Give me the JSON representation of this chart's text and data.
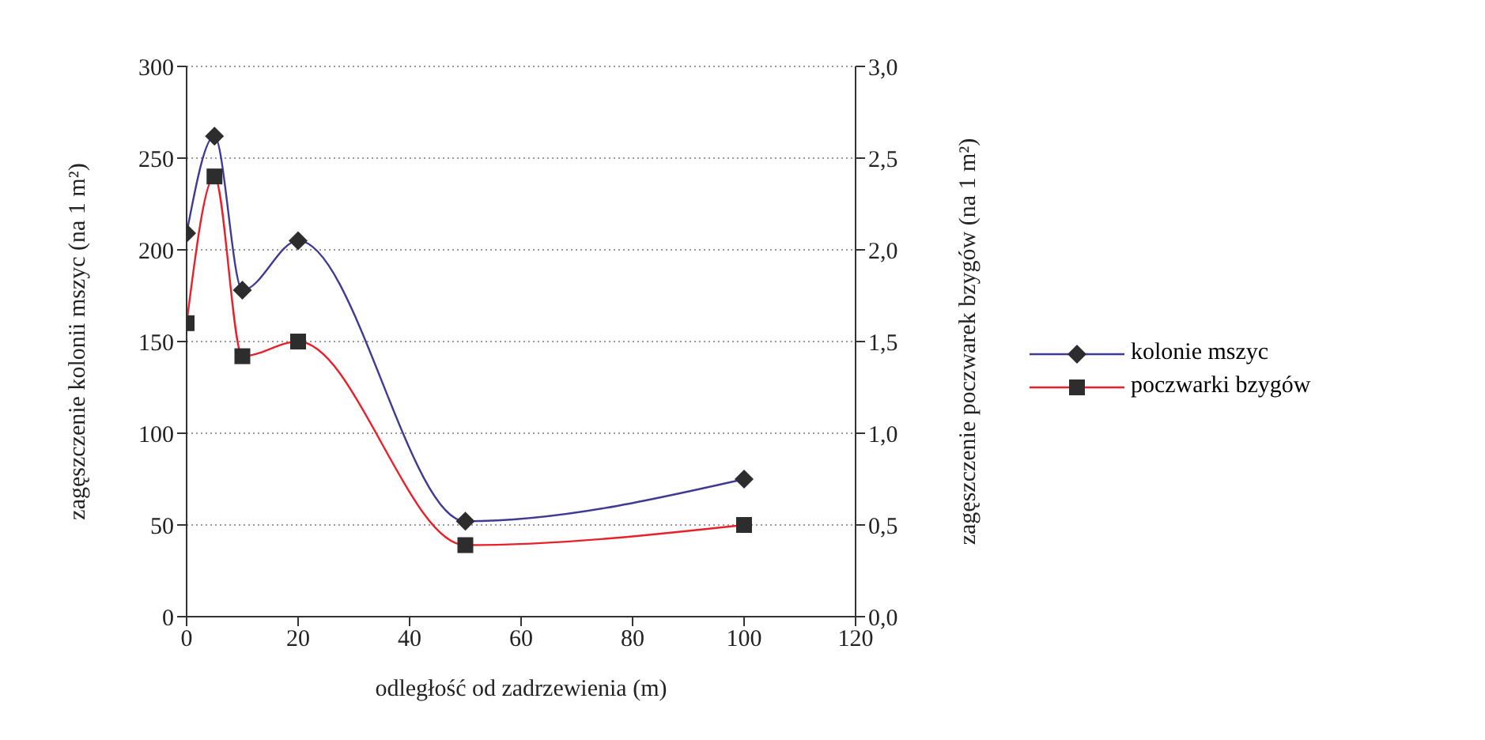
{
  "chart_data": {
    "type": "line",
    "xlabel": "odległość od zadrzewienia (m)",
    "ylabel": "zagęszczenie kolonii mszyc (na 1 m²)",
    "y2label": "zagęszczenie poczwarek bzygów (na 1 m²)",
    "x": [
      0,
      5,
      10,
      20,
      50,
      100
    ],
    "series": [
      {
        "name": "kolonie mszyc",
        "color": "#3f3a94",
        "marker": "diamond",
        "values": [
          209,
          262,
          178,
          205,
          52,
          75
        ]
      },
      {
        "name": "poczwarki bzygów",
        "color": "#e8202a",
        "marker": "square",
        "axis": "y2",
        "values": [
          1.6,
          2.4,
          1.42,
          1.5,
          0.39,
          0.5
        ]
      }
    ],
    "xlim": [
      0,
      120
    ],
    "xticks": [
      0,
      20,
      40,
      60,
      80,
      100,
      120
    ],
    "ylim": [
      0,
      300
    ],
    "yticks": [
      0,
      50,
      100,
      150,
      200,
      250,
      300
    ],
    "y2lim": [
      0,
      3
    ],
    "y2ticks": [
      {
        "value": 0,
        "label": "0,0"
      },
      {
        "value": 0.5,
        "label": "0,5"
      },
      {
        "value": 1,
        "label": "1,0"
      },
      {
        "value": 1.5,
        "label": "1,5"
      },
      {
        "value": 2,
        "label": "2,0"
      },
      {
        "value": 2.5,
        "label": "2,5"
      },
      {
        "value": 3,
        "label": "3,0"
      }
    ],
    "grid": "y",
    "legend": "right",
    "line_style": "solid"
  }
}
